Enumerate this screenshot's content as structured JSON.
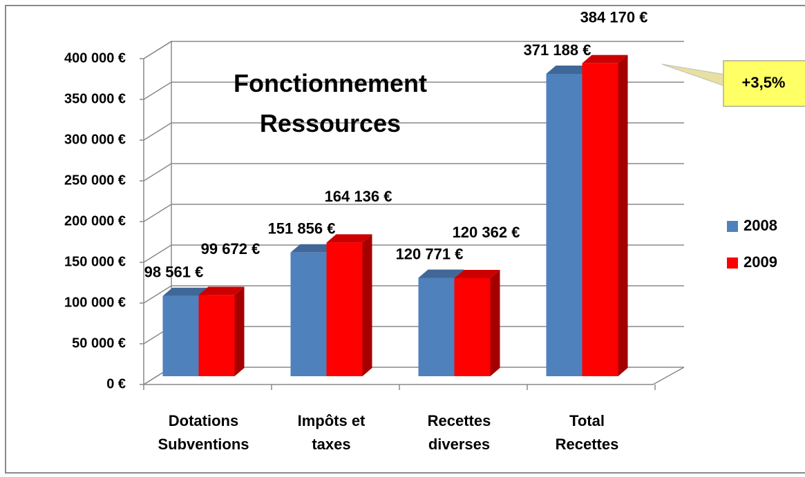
{
  "chart_data": {
    "type": "bar3d",
    "title": "Fonctionnement\nRessources",
    "categories": [
      "Dotations\nSubventions",
      "Impôts et\ntaxes",
      "Recettes\ndiverses",
      "Total\nRecettes"
    ],
    "series": [
      {
        "name": "2008",
        "color": "#4f81bd",
        "values": [
          98561,
          151856,
          120771,
          371188
        ],
        "value_labels": [
          "98 561 €",
          "151 856 €",
          "120 771 €",
          "371 188 €"
        ]
      },
      {
        "name": "2009",
        "color": "#ff0000",
        "values": [
          99672,
          164136,
          120362,
          384170
        ],
        "value_labels": [
          "99 672 €",
          "164 136 €",
          "120 362 €",
          "384 170 €"
        ]
      }
    ],
    "ylim": [
      0,
      400000
    ],
    "yticks": [
      {
        "value": 0,
        "label": "0 €"
      },
      {
        "value": 50000,
        "label": "50 000 €"
      },
      {
        "value": 100000,
        "label": "100 000 €"
      },
      {
        "value": 150000,
        "label": "150 000 €"
      },
      {
        "value": 200000,
        "label": "200 000 €"
      },
      {
        "value": 250000,
        "label": "250 000 €"
      },
      {
        "value": 300000,
        "label": "300 000 €"
      },
      {
        "value": 350000,
        "label": "350 000 €"
      },
      {
        "value": 400000,
        "label": "400 000 €"
      }
    ],
    "grid": true,
    "legend": "right",
    "annotation": "+3,5%"
  }
}
